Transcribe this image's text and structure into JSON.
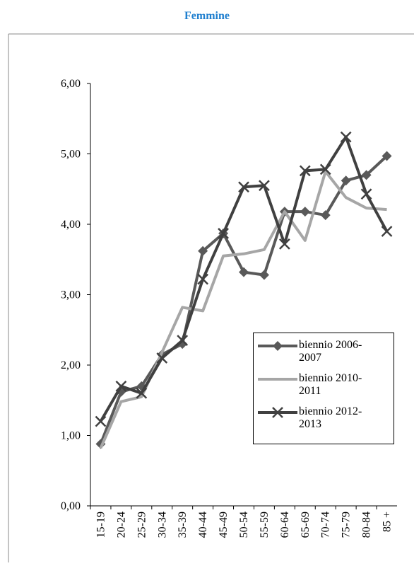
{
  "chart_data": {
    "type": "line",
    "title": "Femmine",
    "categories": [
      "15-19",
      "20-24",
      "25-29",
      "30-34",
      "35-39",
      "40-44",
      "45-49",
      "50-54",
      "55-59",
      "60-64",
      "65-69",
      "70-74",
      "75-79",
      "80-84",
      "85 +"
    ],
    "series": [
      {
        "name": "biennio 2006-2007",
        "color": "#595959",
        "marker": "diamond",
        "values": [
          0.88,
          1.62,
          1.7,
          2.15,
          2.3,
          3.62,
          3.87,
          3.32,
          3.28,
          4.18,
          4.18,
          4.13,
          4.62,
          4.7,
          4.97
        ]
      },
      {
        "name": "biennio 2010-2011",
        "color": "#a6a6a6",
        "marker": "none",
        "values": [
          0.82,
          1.48,
          1.55,
          2.18,
          2.82,
          2.77,
          3.55,
          3.58,
          3.64,
          4.18,
          3.77,
          4.75,
          4.38,
          4.23,
          4.21
        ]
      },
      {
        "name": "biennio 2012-2013",
        "color": "#404040",
        "marker": "x",
        "values": [
          1.2,
          1.7,
          1.6,
          2.1,
          2.35,
          3.22,
          3.87,
          4.53,
          4.55,
          3.72,
          4.76,
          4.78,
          5.24,
          4.43,
          3.9
        ]
      }
    ],
    "ylim": [
      0,
      6
    ],
    "yticks": [
      {
        "value": 0,
        "label": "0,00"
      },
      {
        "value": 1,
        "label": "1,00"
      },
      {
        "value": 2,
        "label": "2,00"
      },
      {
        "value": 3,
        "label": "3,00"
      },
      {
        "value": 4,
        "label": "4,00"
      },
      {
        "value": 5,
        "label": "5,00"
      },
      {
        "value": 6,
        "label": "6,00"
      }
    ],
    "grid": false
  }
}
